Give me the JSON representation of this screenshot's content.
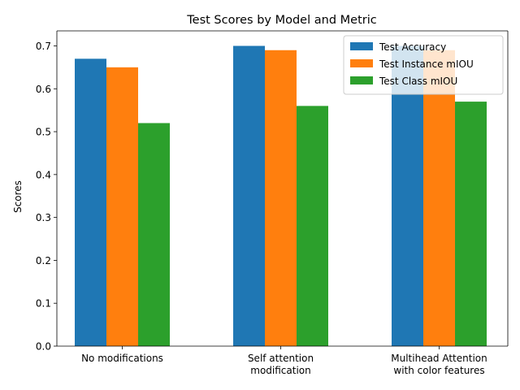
{
  "chart_data": {
    "type": "bar",
    "title": "Test Scores by Model and Metric",
    "xlabel": "",
    "ylabel": "Scores",
    "categories": [
      [
        "No modifications"
      ],
      [
        "Self attention",
        "modification"
      ],
      [
        "Multihead Attention",
        "with color features"
      ]
    ],
    "series": [
      {
        "name": "Test Accuracy",
        "color": "#1f77b4",
        "values": [
          0.67,
          0.7,
          0.7
        ]
      },
      {
        "name": "Test Instance mIOU",
        "color": "#ff7f0e",
        "values": [
          0.65,
          0.69,
          0.69
        ]
      },
      {
        "name": "Test Class mIOU",
        "color": "#2ca02c",
        "values": [
          0.52,
          0.56,
          0.57
        ]
      }
    ],
    "ylim": [
      0,
      0.735
    ],
    "yticks": [
      "0.0",
      "0.1",
      "0.2",
      "0.3",
      "0.4",
      "0.5",
      "0.6",
      "0.7"
    ],
    "legend_position": "top-right",
    "grid": false
  }
}
